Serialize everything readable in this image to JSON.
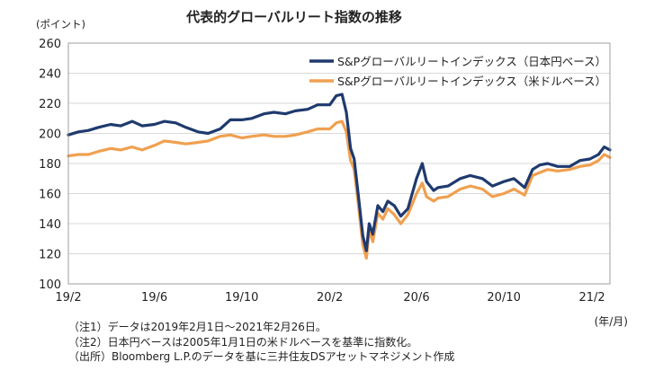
{
  "chart_data": {
    "type": "line",
    "title": "代表的グローバルリート指数の推移",
    "ylabel": "(ポイント)",
    "xunit": "(年/月)",
    "ylim": [
      100,
      260
    ],
    "yticks": [
      100,
      120,
      140,
      160,
      180,
      200,
      220,
      240,
      260
    ],
    "xlim": [
      "2019-02-01",
      "2021-02-26"
    ],
    "xticks": [
      {
        "date": "2019-02-01",
        "label": "19/2"
      },
      {
        "date": "2019-06-01",
        "label": "19/6"
      },
      {
        "date": "2019-10-01",
        "label": "19/10"
      },
      {
        "date": "2020-02-01",
        "label": "20/2"
      },
      {
        "date": "2020-06-01",
        "label": "20/6"
      },
      {
        "date": "2020-10-01",
        "label": "20/10"
      },
      {
        "date": "2021-02-01",
        "label": "21/2"
      }
    ],
    "grid": "horizontal",
    "legend": "top-right",
    "series": [
      {
        "name": "S&Pグローバルリートインデックス（日本円ベース）",
        "color": "#1f3a6e",
        "points": [
          [
            "2019-02-01",
            199
          ],
          [
            "2019-02-15",
            201
          ],
          [
            "2019-03-01",
            202
          ],
          [
            "2019-03-15",
            204
          ],
          [
            "2019-04-01",
            206
          ],
          [
            "2019-04-15",
            205
          ],
          [
            "2019-05-01",
            208
          ],
          [
            "2019-05-15",
            205
          ],
          [
            "2019-06-01",
            206
          ],
          [
            "2019-06-15",
            208
          ],
          [
            "2019-07-01",
            207
          ],
          [
            "2019-07-15",
            204
          ],
          [
            "2019-08-01",
            201
          ],
          [
            "2019-08-15",
            200
          ],
          [
            "2019-09-01",
            203
          ],
          [
            "2019-09-15",
            209
          ],
          [
            "2019-10-01",
            209
          ],
          [
            "2019-10-15",
            210
          ],
          [
            "2019-11-01",
            213
          ],
          [
            "2019-11-15",
            214
          ],
          [
            "2019-12-01",
            213
          ],
          [
            "2019-12-15",
            215
          ],
          [
            "2020-01-01",
            216
          ],
          [
            "2020-01-15",
            219
          ],
          [
            "2020-02-01",
            219
          ],
          [
            "2020-02-10",
            225
          ],
          [
            "2020-02-18",
            226
          ],
          [
            "2020-02-24",
            214
          ],
          [
            "2020-03-01",
            190
          ],
          [
            "2020-03-06",
            183
          ],
          [
            "2020-03-12",
            158
          ],
          [
            "2020-03-18",
            132
          ],
          [
            "2020-03-23",
            122
          ],
          [
            "2020-03-27",
            140
          ],
          [
            "2020-04-01",
            133
          ],
          [
            "2020-04-08",
            152
          ],
          [
            "2020-04-15",
            148
          ],
          [
            "2020-04-22",
            155
          ],
          [
            "2020-05-01",
            152
          ],
          [
            "2020-05-10",
            145
          ],
          [
            "2020-05-20",
            150
          ],
          [
            "2020-06-01",
            170
          ],
          [
            "2020-06-09",
            180
          ],
          [
            "2020-06-15",
            168
          ],
          [
            "2020-06-25",
            162
          ],
          [
            "2020-07-01",
            164
          ],
          [
            "2020-07-15",
            165
          ],
          [
            "2020-08-01",
            170
          ],
          [
            "2020-08-15",
            172
          ],
          [
            "2020-09-01",
            170
          ],
          [
            "2020-09-15",
            165
          ],
          [
            "2020-10-01",
            168
          ],
          [
            "2020-10-15",
            170
          ],
          [
            "2020-10-30",
            164
          ],
          [
            "2020-11-10",
            176
          ],
          [
            "2020-11-20",
            179
          ],
          [
            "2020-12-01",
            180
          ],
          [
            "2020-12-15",
            178
          ],
          [
            "2021-01-01",
            178
          ],
          [
            "2021-01-15",
            182
          ],
          [
            "2021-01-29",
            183
          ],
          [
            "2021-02-10",
            186
          ],
          [
            "2021-02-18",
            191
          ],
          [
            "2021-02-26",
            189
          ]
        ]
      },
      {
        "name": "S&Pグローバルリートインデックス（米ドルベース）",
        "color": "#f0a050",
        "points": [
          [
            "2019-02-01",
            185
          ],
          [
            "2019-02-15",
            186
          ],
          [
            "2019-03-01",
            186
          ],
          [
            "2019-03-15",
            188
          ],
          [
            "2019-04-01",
            190
          ],
          [
            "2019-04-15",
            189
          ],
          [
            "2019-05-01",
            191
          ],
          [
            "2019-05-15",
            189
          ],
          [
            "2019-06-01",
            192
          ],
          [
            "2019-06-15",
            195
          ],
          [
            "2019-07-01",
            194
          ],
          [
            "2019-07-15",
            193
          ],
          [
            "2019-08-01",
            194
          ],
          [
            "2019-08-15",
            195
          ],
          [
            "2019-09-01",
            198
          ],
          [
            "2019-09-15",
            199
          ],
          [
            "2019-10-01",
            197
          ],
          [
            "2019-10-15",
            198
          ],
          [
            "2019-11-01",
            199
          ],
          [
            "2019-11-15",
            198
          ],
          [
            "2019-12-01",
            198
          ],
          [
            "2019-12-15",
            199
          ],
          [
            "2020-01-01",
            201
          ],
          [
            "2020-01-15",
            203
          ],
          [
            "2020-02-01",
            203
          ],
          [
            "2020-02-10",
            207
          ],
          [
            "2020-02-18",
            208
          ],
          [
            "2020-02-24",
            201
          ],
          [
            "2020-03-01",
            182
          ],
          [
            "2020-03-06",
            176
          ],
          [
            "2020-03-12",
            152
          ],
          [
            "2020-03-18",
            126
          ],
          [
            "2020-03-23",
            117
          ],
          [
            "2020-03-27",
            136
          ],
          [
            "2020-04-01",
            128
          ],
          [
            "2020-04-08",
            147
          ],
          [
            "2020-04-15",
            143
          ],
          [
            "2020-04-22",
            150
          ],
          [
            "2020-05-01",
            146
          ],
          [
            "2020-05-10",
            140
          ],
          [
            "2020-05-20",
            146
          ],
          [
            "2020-06-01",
            160
          ],
          [
            "2020-06-09",
            167
          ],
          [
            "2020-06-15",
            158
          ],
          [
            "2020-06-25",
            155
          ],
          [
            "2020-07-01",
            157
          ],
          [
            "2020-07-15",
            158
          ],
          [
            "2020-08-01",
            163
          ],
          [
            "2020-08-15",
            165
          ],
          [
            "2020-09-01",
            163
          ],
          [
            "2020-09-15",
            158
          ],
          [
            "2020-10-01",
            160
          ],
          [
            "2020-10-15",
            163
          ],
          [
            "2020-10-30",
            159
          ],
          [
            "2020-11-10",
            172
          ],
          [
            "2020-11-20",
            174
          ],
          [
            "2020-12-01",
            176
          ],
          [
            "2020-12-15",
            175
          ],
          [
            "2021-01-01",
            176
          ],
          [
            "2021-01-15",
            178
          ],
          [
            "2021-01-29",
            179
          ],
          [
            "2021-02-10",
            182
          ],
          [
            "2021-02-18",
            186
          ],
          [
            "2021-02-26",
            184
          ]
        ]
      }
    ],
    "notes": [
      "（注1）データは2019年2月1日～2021年2月26日。",
      "（注2）日本円ベースは2005年1月1日の米ドルベースを基準に指数化。",
      "（出所）Bloomberg L.P.のデータを基に三井住友DSアセットマネジメント作成"
    ]
  }
}
